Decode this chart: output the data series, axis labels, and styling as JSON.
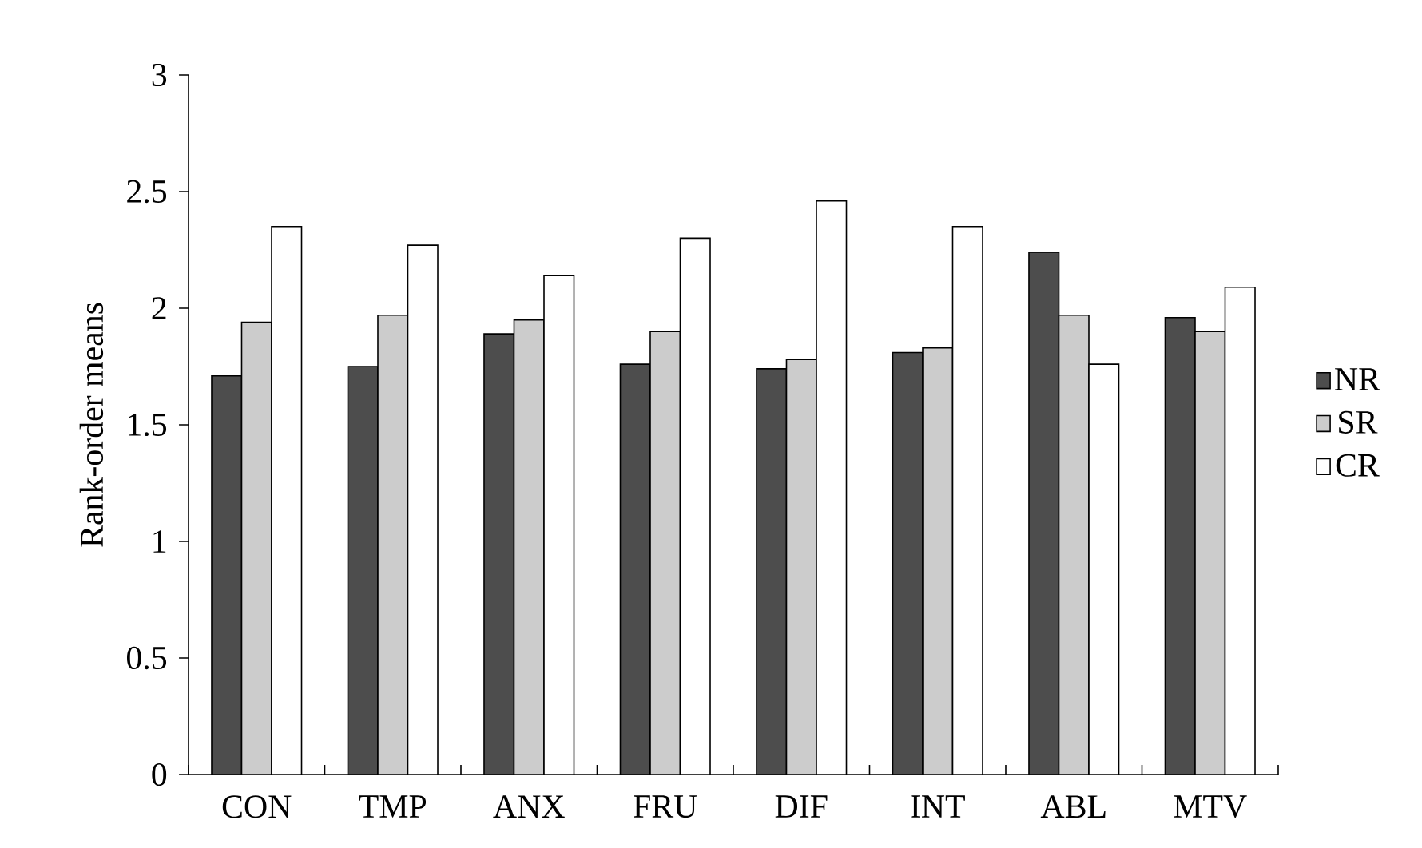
{
  "chart_data": {
    "type": "bar",
    "ylabel": "Rank-order means",
    "categories": [
      "CON",
      "TMP",
      "ANX",
      "FRU",
      "DIF",
      "INT",
      "ABL",
      "MTV"
    ],
    "series": [
      {
        "name": "NR",
        "color": "#4d4d4d",
        "values": [
          1.71,
          1.75,
          1.89,
          1.76,
          1.74,
          1.81,
          2.24,
          1.96
        ]
      },
      {
        "name": "SR",
        "color": "#cccccc",
        "values": [
          1.94,
          1.97,
          1.95,
          1.9,
          1.78,
          1.83,
          1.97,
          1.9
        ]
      },
      {
        "name": "CR",
        "color": "#ffffff",
        "values": [
          2.35,
          2.27,
          2.14,
          2.3,
          2.46,
          2.35,
          1.76,
          2.09
        ]
      }
    ],
    "ylim": [
      0,
      3
    ],
    "yticks": [
      0,
      0.5,
      1,
      1.5,
      2,
      2.5,
      3
    ],
    "grid": false,
    "legend": "right"
  }
}
